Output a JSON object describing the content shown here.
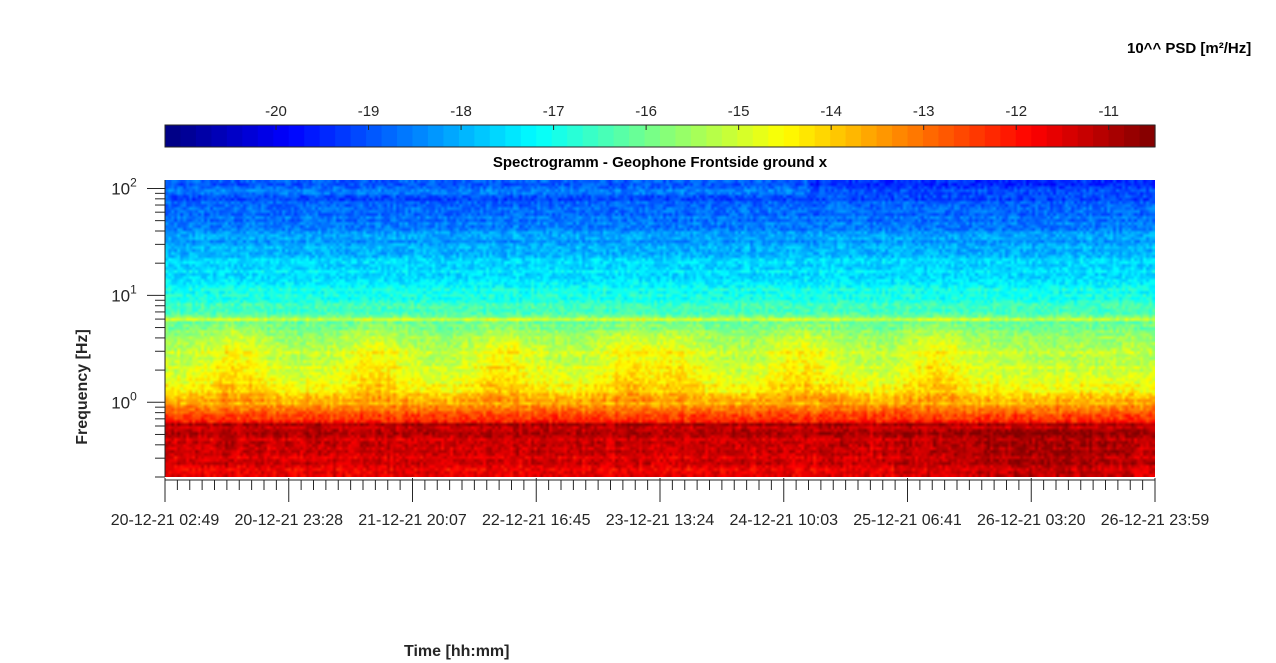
{
  "chart_data": {
    "type": "heatmap",
    "title": "Spectrogramm - Geophone Frontside ground x",
    "xlabel": "Time [hh:mm]",
    "ylabel": "Frequency [Hz]",
    "yscale": "log",
    "ylim": [
      0.2,
      120
    ],
    "y_ticks": [
      {
        "value": 1,
        "base": "10",
        "exp": "0"
      },
      {
        "value": 10,
        "base": "10",
        "exp": "1"
      },
      {
        "value": 100,
        "base": "10",
        "exp": "2"
      }
    ],
    "x_tick_labels": [
      "20-12-21  02:49",
      "20-12-21  23:28",
      "21-12-21  20:07",
      "22-12-21  16:45",
      "23-12-21  13:24",
      "24-12-21  10:03",
      "25-12-21  06:41",
      "26-12-21  03:20",
      "26-12-21  23:59"
    ],
    "colorbar": {
      "label": "10^^ PSD [m²/Hz]",
      "colormap": "jet",
      "range": [
        -21.2,
        -10.5
      ],
      "ticks": [
        -20,
        -19,
        -18,
        -17,
        -16,
        -15,
        -14,
        -13,
        -12,
        -11
      ]
    },
    "grid": false,
    "description_bands": {
      "low_freq_below_0.7Hz_log10_psd": -11.8,
      "around_1Hz_log10_psd": -14.5,
      "peak_at_6Hz_log10_psd": -15.5,
      "above_10Hz_log10_psd": -17.5,
      "near_100Hz_log10_psd": -19.5
    }
  }
}
